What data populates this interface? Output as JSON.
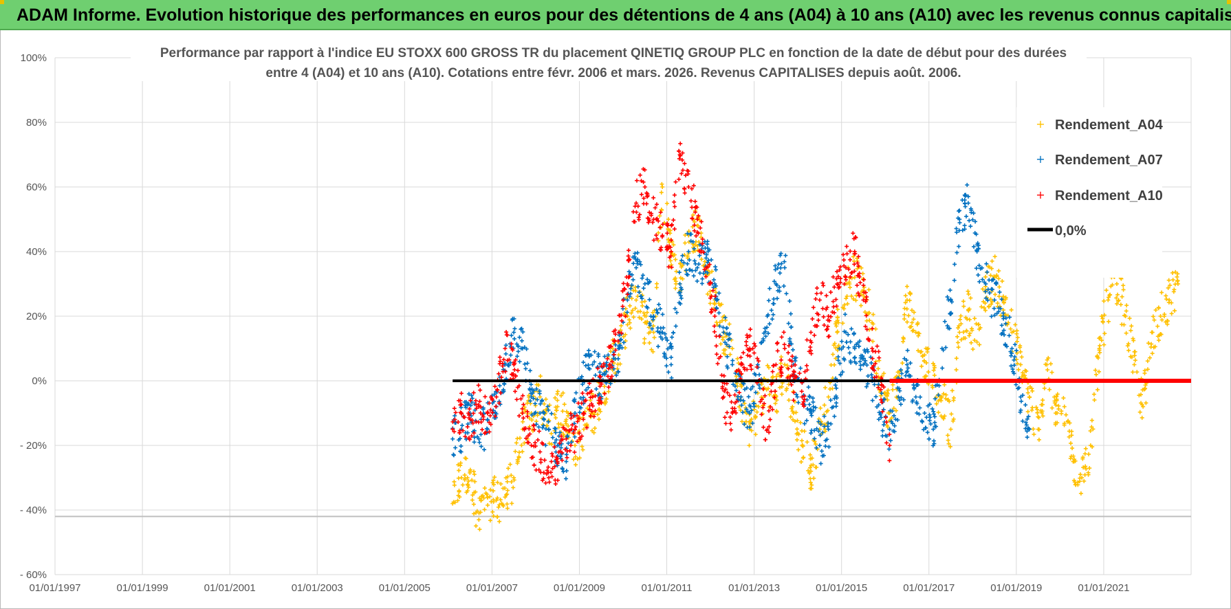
{
  "banner": {
    "title": "ADAM Informe. Evolution historique des performances en euros pour des détentions de 4 ans (A04) à 10 ans (A10) avec les revenus connus capitalisés"
  },
  "colors": {
    "A04": "#ffc000",
    "A07": "#0070c0",
    "A10": "#ff0000",
    "zero": "#000000",
    "grid": "#d9d9d9",
    "banner": "#6fcf70"
  },
  "chart_data": {
    "type": "scatter",
    "title_line1": "Performance par rapport à l'indice EU STOXX 600 GROSS TR  du placement QINETIQ GROUP PLC en fonction de la date de début pour des durées",
    "title_line2": "entre 4 (A04) et 10 ans (A10).  Cotations entre févr. 2006 et mars. 2026. Revenus CAPITALISES depuis août. 2006.",
    "xlim": [
      1997.0,
      2023.0
    ],
    "ylim": [
      -60,
      100
    ],
    "x_ticks": [
      1997,
      1999,
      2001,
      2003,
      2005,
      2007,
      2009,
      2011,
      2013,
      2015,
      2017,
      2019,
      2021
    ],
    "x_tick_labels": [
      "01/01/1997",
      "01/01/1999",
      "01/01/2001",
      "01/01/2003",
      "01/01/2005",
      "01/01/2007",
      "01/01/2009",
      "01/01/2011",
      "01/01/2013",
      "01/01/2015",
      "01/01/2017",
      "01/01/2019",
      "01/01/2021"
    ],
    "y_ticks": [
      100,
      80,
      60,
      40,
      20,
      0,
      -20,
      -40,
      -60
    ],
    "y_tick_labels": [
      "100%",
      "80%",
      "60%",
      "40%",
      "20%",
      "0%",
      "- 20%",
      "- 40%",
      "- 60%"
    ],
    "legend": [
      {
        "key": "A04",
        "label": "Rendement_A04"
      },
      {
        "key": "A07",
        "label": "Rendement_A07"
      },
      {
        "key": "A10",
        "label": "Rendement_A10"
      },
      {
        "key": "zero",
        "label": "0,0%"
      }
    ],
    "series": [
      {
        "name": "Rendement_A04",
        "key": "A04",
        "x": [
          2006.1,
          2006.3,
          2006.5,
          2006.7,
          2006.9,
          2007.1,
          2007.3,
          2007.5,
          2007.7,
          2007.9,
          2008.1,
          2008.3,
          2008.5,
          2008.7,
          2008.9,
          2009.1,
          2009.3,
          2009.5,
          2009.7,
          2009.9,
          2010.1,
          2010.3,
          2010.5,
          2010.7,
          2010.9,
          2011.1,
          2011.3,
          2011.5,
          2011.7,
          2011.9,
          2012.1,
          2012.3,
          2012.5,
          2012.7,
          2012.9,
          2013.1,
          2013.3,
          2013.5,
          2013.7,
          2013.9,
          2014.1,
          2014.3,
          2014.5,
          2014.7,
          2014.9,
          2015.1,
          2015.3,
          2015.5,
          2015.7,
          2015.9,
          2016.1,
          2016.3,
          2016.5,
          2016.7,
          2016.9,
          2017.1,
          2017.3,
          2017.5,
          2017.7,
          2017.9,
          2018.1,
          2018.3,
          2018.5,
          2018.7,
          2018.9,
          2019.1,
          2019.3,
          2019.5,
          2019.7,
          2019.9,
          2020.1,
          2020.3,
          2020.5,
          2020.7,
          2020.9,
          2021.1,
          2021.3,
          2021.5,
          2021.7,
          2021.9,
          2022.1,
          2022.3,
          2022.5,
          2022.7
        ],
        "y": [
          -38,
          -30,
          -28,
          -43,
          -36,
          -37,
          -36,
          -30,
          -15,
          -10,
          -5,
          -15,
          -8,
          -12,
          -20,
          -15,
          -10,
          -5,
          5,
          8,
          20,
          25,
          18,
          15,
          60,
          40,
          30,
          45,
          48,
          35,
          25,
          15,
          10,
          -5,
          -15,
          -8,
          0,
          -5,
          5,
          -10,
          -20,
          -28,
          -15,
          -5,
          15,
          30,
          32,
          28,
          18,
          0,
          -10,
          0,
          25,
          15,
          8,
          0,
          -5,
          -15,
          15,
          22,
          12,
          28,
          32,
          25,
          15,
          5,
          -5,
          -15,
          5,
          -10,
          -8,
          -25,
          -30,
          -20,
          10,
          25,
          30,
          20,
          5,
          -8,
          15,
          20,
          25,
          30
        ]
      },
      {
        "name": "Rendement_A07",
        "key": "A07",
        "x": [
          2006.1,
          2006.3,
          2006.5,
          2006.7,
          2006.9,
          2007.1,
          2007.3,
          2007.5,
          2007.7,
          2007.9,
          2008.1,
          2008.3,
          2008.5,
          2008.7,
          2008.9,
          2009.1,
          2009.3,
          2009.5,
          2009.7,
          2009.9,
          2010.1,
          2010.3,
          2010.5,
          2010.7,
          2010.9,
          2011.1,
          2011.3,
          2011.5,
          2011.7,
          2011.9,
          2012.1,
          2012.3,
          2012.5,
          2012.7,
          2012.9,
          2013.1,
          2013.3,
          2013.5,
          2013.7,
          2013.9,
          2014.1,
          2014.3,
          2014.5,
          2014.7,
          2014.9,
          2015.1,
          2015.3,
          2015.5,
          2015.7,
          2015.9,
          2016.1,
          2016.3,
          2016.5,
          2016.7,
          2016.9,
          2017.1,
          2017.3,
          2017.5,
          2017.7,
          2017.9,
          2018.1,
          2018.3,
          2018.5,
          2018.7,
          2018.9,
          2019.1,
          2019.3
        ],
        "y": [
          -18,
          -15,
          -10,
          -18,
          -12,
          -8,
          5,
          15,
          10,
          -5,
          -10,
          -15,
          -20,
          -25,
          -10,
          0,
          5,
          0,
          5,
          10,
          25,
          35,
          30,
          20,
          15,
          5,
          30,
          40,
          35,
          38,
          30,
          15,
          5,
          -5,
          -10,
          0,
          20,
          30,
          35,
          5,
          -5,
          -10,
          -20,
          -15,
          0,
          15,
          10,
          5,
          0,
          -10,
          -15,
          -5,
          5,
          -5,
          -10,
          -15,
          10,
          25,
          50,
          55,
          40,
          30,
          25,
          20,
          10,
          -5,
          -15
        ]
      },
      {
        "name": "Rendement_A10",
        "key": "A10",
        "x": [
          2006.1,
          2006.3,
          2006.5,
          2006.7,
          2006.9,
          2007.1,
          2007.3,
          2007.5,
          2007.7,
          2007.9,
          2008.1,
          2008.3,
          2008.5,
          2008.7,
          2008.9,
          2009.1,
          2009.3,
          2009.5,
          2009.7,
          2009.9,
          2010.1,
          2010.3,
          2010.5,
          2010.7,
          2010.9,
          2011.1,
          2011.3,
          2011.5,
          2011.7,
          2011.9,
          2012.1,
          2012.3,
          2012.5,
          2012.7,
          2012.9,
          2013.1,
          2013.3,
          2013.5,
          2013.7,
          2013.9,
          2014.1,
          2014.3,
          2014.5,
          2014.7,
          2014.9,
          2015.1,
          2015.3,
          2015.5,
          2015.7,
          2015.9,
          2016.1
        ],
        "y": [
          -15,
          -10,
          -12,
          -8,
          -10,
          -5,
          10,
          5,
          -10,
          -20,
          -22,
          -30,
          -25,
          -18,
          -15,
          -10,
          -5,
          0,
          5,
          15,
          30,
          55,
          60,
          50,
          45,
          40,
          70,
          60,
          50,
          35,
          20,
          -5,
          -10,
          5,
          10,
          0,
          -15,
          5,
          10,
          0,
          -5,
          15,
          25,
          20,
          30,
          35,
          40,
          25,
          10,
          0,
          -20
        ]
      },
      {
        "name": "0,0%",
        "key": "zero",
        "segments": [
          {
            "x": [
              2006.1,
              2016.1
            ],
            "y": [
              0,
              0
            ],
            "color_key": "zero"
          },
          {
            "x": [
              2016.1,
              2023.0
            ],
            "y": [
              0,
              0
            ],
            "color_key": "A10"
          }
        ]
      }
    ]
  }
}
